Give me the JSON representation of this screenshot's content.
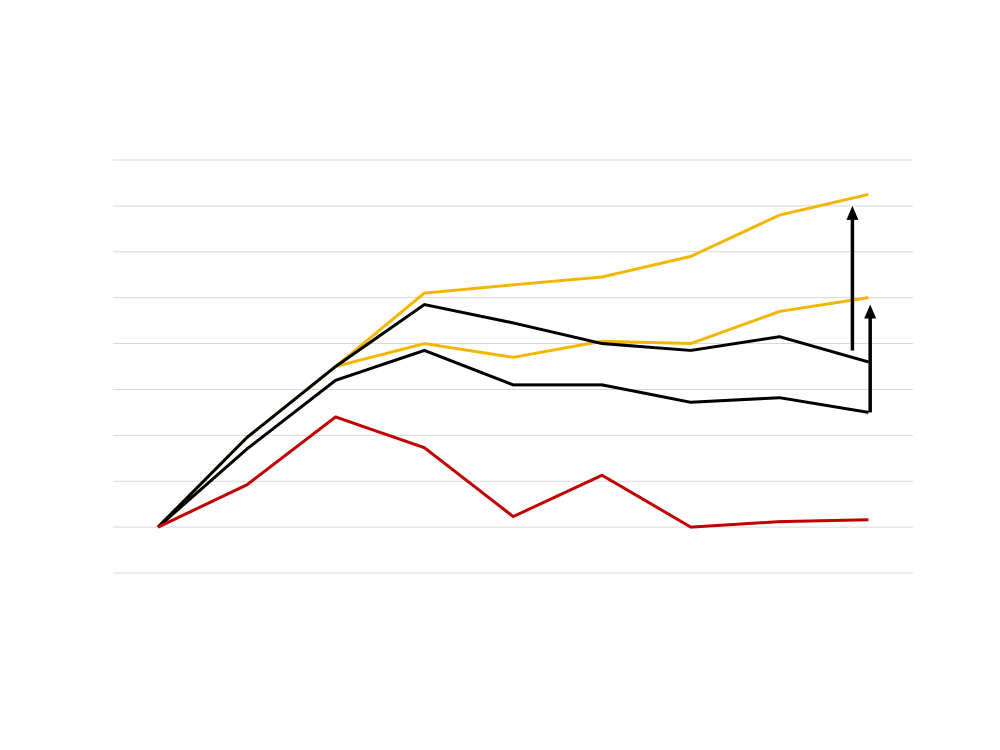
{
  "chart_data": {
    "type": "line",
    "title": "",
    "xlabel": "",
    "ylabel": "",
    "x": [
      1,
      2,
      3,
      4,
      5,
      6,
      7,
      8,
      9
    ],
    "ylim": [
      -1,
      8
    ],
    "grid": true,
    "gridlines_y": [
      -1,
      0,
      1,
      2,
      3,
      4,
      5,
      6,
      7,
      8
    ],
    "legend": "none",
    "series": [
      {
        "color": "#f2b705",
        "values": [
          0,
          1.95,
          3.5,
          5.1,
          5.28,
          5.45,
          5.9,
          6.8,
          7.25
        ]
      },
      {
        "color": "#f2b705",
        "values": [
          0,
          1.95,
          3.5,
          4.0,
          3.7,
          4.05,
          4.0,
          4.7,
          5.0
        ]
      },
      {
        "color": "#000000",
        "values": [
          0,
          1.95,
          3.5,
          4.85,
          4.45,
          4.0,
          3.85,
          4.15,
          3.6
        ]
      },
      {
        "color": "#000000",
        "values": [
          0,
          1.7,
          3.2,
          3.85,
          3.1,
          3.1,
          2.72,
          2.82,
          2.5
        ]
      },
      {
        "color": "#c00000",
        "values": [
          0,
          0.92,
          2.4,
          1.73,
          0.23,
          1.13,
          0,
          0.12,
          0.16
        ]
      }
    ],
    "annotations": [
      {
        "type": "arrow",
        "color": "#000000",
        "x": 8.82,
        "from": 3.85,
        "to": 7.0
      },
      {
        "type": "arrow",
        "color": "#000000",
        "x": 9.02,
        "from": 2.5,
        "to": 4.85
      }
    ]
  }
}
